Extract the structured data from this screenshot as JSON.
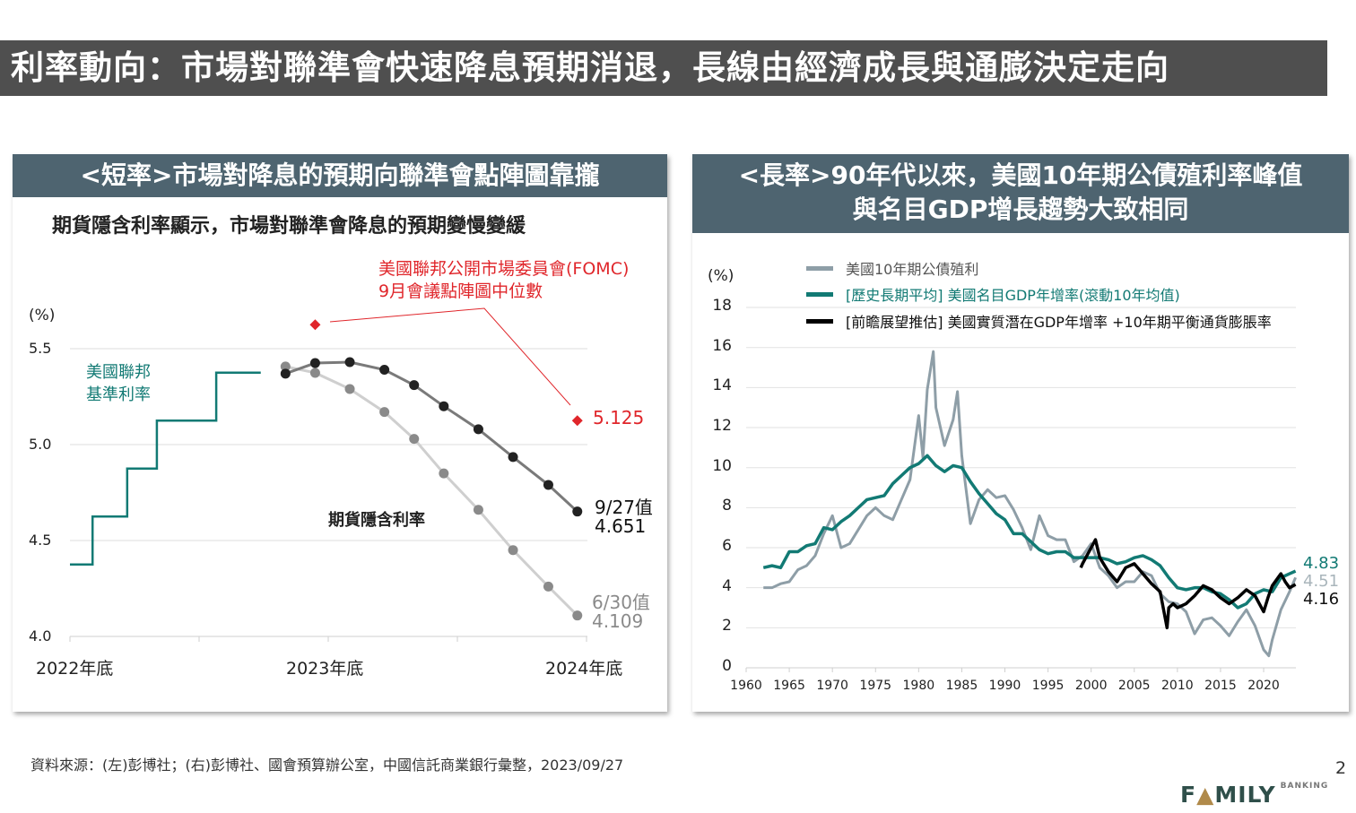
{
  "title": "利率動向：市場對聯準會快速降息預期消退，長線由經濟成長與通膨決定走向",
  "page_number": "2",
  "source": "資料來源：(左)彭博社；(右)彭博社、國會預算辦公室，中國信託商業銀行彙整，2023/09/27",
  "logo_text": "FAMILY BANKING",
  "colors": {
    "title_bg": "#4f4f4f",
    "panel_header": "#4e6470",
    "teal": "#127a74",
    "red": "#e0262b",
    "gray_yield": "#8e9ea7"
  },
  "chart_data": [
    {
      "type": "line",
      "panel_header": "<短率>市場對降息的預期向聯準會點陣圖靠攏",
      "title": "期貨隱含利率顯示，市場對聯準會降息的預期變慢變緩",
      "ylabel": "(%)",
      "ylim": [
        4.0,
        5.5
      ],
      "yticks": [
        "5.5",
        "5.0",
        "4.5",
        "4.0"
      ],
      "xticks": [
        "2022年底",
        "2023年底",
        "2024年底"
      ],
      "xlim": [
        "2022-12-31",
        "2024-12-31"
      ],
      "grid": true,
      "annotations": {
        "fed_label": "美國聯邦\n基準利率",
        "futures_label": "期貨隱含利率",
        "fomc_label_1": "美國聯邦公開市場委員會(FOMC)",
        "fomc_label_2": "9月會議點陣圖中位數",
        "fomc_value": "5.125",
        "sep27_label": "9/27值",
        "sep27_value": "4.651",
        "jun30_label": "6/30值",
        "jun30_value": "4.109"
      },
      "series": [
        {
          "name": "美國聯邦基準利率",
          "style": "step",
          "color": "#127a74",
          "x": [
            "2022-12-31",
            "2023-02-01",
            "2023-03-22",
            "2023-05-03",
            "2023-07-26",
            "2023-09-27"
          ],
          "values": [
            4.375,
            4.625,
            4.875,
            5.125,
            5.375,
            5.375
          ]
        },
        {
          "name": "9/27值",
          "color": "#222222",
          "line": "#7a7a7a",
          "x": [
            "2023-11-01",
            "2023-12-13",
            "2024-01-31",
            "2024-03-20",
            "2024-05-01",
            "2024-06-12",
            "2024-07-31",
            "2024-09-18",
            "2024-11-07",
            "2024-12-18"
          ],
          "values": [
            5.37,
            5.425,
            5.43,
            5.39,
            5.31,
            5.2,
            5.08,
            4.935,
            4.79,
            4.651
          ]
        },
        {
          "name": "6/30值",
          "color": "#8a8a8a",
          "line": "#cfcfcf",
          "x": [
            "2023-11-01",
            "2023-12-13",
            "2024-01-31",
            "2024-03-20",
            "2024-05-01",
            "2024-06-12",
            "2024-07-31",
            "2024-09-18",
            "2024-11-07",
            "2024-12-18"
          ],
          "values": [
            5.407,
            5.374,
            5.29,
            5.17,
            5.03,
            4.85,
            4.66,
            4.45,
            4.26,
            4.109
          ]
        },
        {
          "name": "FOMC 9月會議點陣圖中位數",
          "style": "diamond",
          "color": "#e0262b",
          "x": [
            "2023-12-13",
            "2024-12-18"
          ],
          "values": [
            5.625,
            5.125
          ]
        }
      ]
    },
    {
      "type": "line",
      "panel_header_1": "<長率>90年代以來，美國10年期公債殖利率峰值",
      "panel_header_2": "與名目GDP增長趨勢大致相同",
      "ylabel": "(%)",
      "ylim": [
        0,
        18
      ],
      "yticks": [
        "18",
        "16",
        "14",
        "12",
        "10",
        "8",
        "6",
        "4",
        "2",
        "0"
      ],
      "xticks": [
        "1960",
        "1965",
        "1970",
        "1975",
        "1980",
        "1985",
        "1990",
        "1995",
        "2000",
        "2005",
        "2010",
        "2015",
        "2020"
      ],
      "xlim": [
        1960,
        2024
      ],
      "grid": true,
      "legend": "top",
      "end_labels": [
        "4.83",
        "4.51",
        "4.16"
      ],
      "series": [
        {
          "name": "美國10年期公債殖利",
          "color": "#8e9ea7",
          "x": [
            1962,
            1963,
            1964,
            1965,
            1966,
            1967,
            1968,
            1969,
            1970,
            1971,
            1972,
            1973,
            1974,
            1975,
            1976,
            1977,
            1978,
            1979,
            1980,
            1980.5,
            1981,
            1981.7,
            1982,
            1983,
            1984,
            1984.5,
            1985,
            1986,
            1987,
            1988,
            1989,
            1990,
            1991,
            1992,
            1993,
            1994,
            1995,
            1996,
            1997,
            1998,
            1999,
            2000,
            2001,
            2002,
            2003,
            2004,
            2005,
            2006,
            2007,
            2008,
            2009,
            2010,
            2011,
            2012,
            2013,
            2014,
            2015,
            2016,
            2017,
            2018,
            2019,
            2020,
            2020.6,
            2021,
            2022,
            2023,
            2023.7
          ],
          "values": [
            4.0,
            4.0,
            4.2,
            4.3,
            4.9,
            5.1,
            5.6,
            6.7,
            7.6,
            6.0,
            6.2,
            6.9,
            7.6,
            8.0,
            7.6,
            7.4,
            8.4,
            9.4,
            12.6,
            10.5,
            13.9,
            15.8,
            13.0,
            11.1,
            12.4,
            13.8,
            10.6,
            7.2,
            8.4,
            8.9,
            8.5,
            8.6,
            7.9,
            7.0,
            5.9,
            7.6,
            6.6,
            6.4,
            6.4,
            5.3,
            5.6,
            6.2,
            5.0,
            4.6,
            4.0,
            4.3,
            4.3,
            4.8,
            4.6,
            3.7,
            3.3,
            3.2,
            2.8,
            1.7,
            2.4,
            2.5,
            2.1,
            1.6,
            2.3,
            2.9,
            2.1,
            0.9,
            0.6,
            1.4,
            2.9,
            3.8,
            4.51
          ]
        },
        {
          "name": "[歷史長期平均] 美國名目GDP年增率(滾動10年均值)",
          "color": "#127a74",
          "x": [
            1962,
            1963,
            1964,
            1965,
            1966,
            1967,
            1968,
            1969,
            1970,
            1971,
            1972,
            1973,
            1974,
            1975,
            1976,
            1977,
            1978,
            1979,
            1980,
            1981,
            1982,
            1983,
            1984,
            1985,
            1986,
            1987,
            1988,
            1989,
            1990,
            1991,
            1992,
            1993,
            1994,
            1995,
            1996,
            1997,
            1998,
            1999,
            2000,
            2001,
            2002,
            2003,
            2004,
            2005,
            2006,
            2007,
            2008,
            2009,
            2010,
            2011,
            2012,
            2013,
            2014,
            2015,
            2016,
            2017,
            2018,
            2019,
            2020,
            2021,
            2022,
            2023,
            2023.7
          ],
          "values": [
            5.0,
            5.1,
            5.0,
            5.8,
            5.8,
            6.1,
            6.2,
            7.0,
            6.9,
            7.3,
            7.6,
            8.0,
            8.4,
            8.5,
            8.6,
            9.2,
            9.6,
            10.0,
            10.2,
            10.6,
            10.1,
            9.8,
            10.1,
            10.0,
            9.3,
            8.7,
            8.2,
            7.7,
            7.4,
            6.7,
            6.7,
            6.3,
            5.9,
            5.7,
            5.8,
            5.8,
            5.5,
            5.5,
            5.5,
            5.5,
            5.4,
            5.2,
            5.3,
            5.5,
            5.6,
            5.4,
            5.1,
            4.5,
            4.0,
            3.9,
            4.0,
            4.0,
            3.8,
            3.7,
            3.4,
            3.0,
            3.2,
            3.7,
            3.9,
            3.8,
            4.5,
            4.7,
            4.83
          ]
        },
        {
          "name": "[前瞻展望推估] 美國實質潛在GDP年增率 +10年期平衡通貨膨脹率",
          "color": "#000000",
          "x": [
            1998.8,
            1999,
            2000,
            2000.5,
            2001,
            2002,
            2003,
            2004,
            2005,
            2006,
            2007,
            2008,
            2008.8,
            2009,
            2009.5,
            2010,
            2011,
            2012,
            2013,
            2014,
            2015,
            2016,
            2017,
            2018,
            2019,
            2020,
            2020.5,
            2021,
            2022,
            2022.5,
            2023,
            2023.7
          ],
          "values": [
            5.0,
            5.2,
            6.0,
            6.4,
            5.5,
            4.8,
            4.3,
            5.0,
            5.2,
            4.7,
            4.2,
            3.8,
            2.0,
            3.0,
            3.2,
            3.0,
            3.2,
            3.6,
            4.1,
            3.9,
            3.5,
            3.2,
            3.5,
            3.9,
            3.6,
            2.8,
            3.5,
            4.1,
            4.7,
            4.3,
            4.0,
            4.16
          ]
        }
      ]
    }
  ]
}
